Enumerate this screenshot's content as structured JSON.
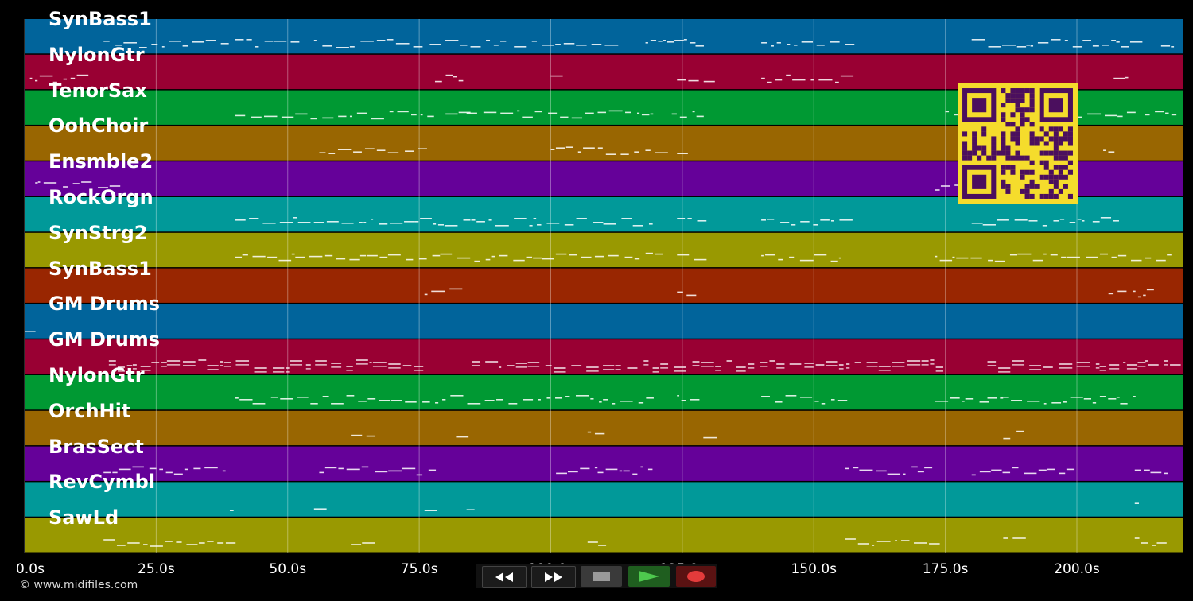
{
  "timeline": {
    "max_seconds": 220,
    "ticks": [
      {
        "seconds": 0,
        "label": "0.0s"
      },
      {
        "seconds": 25,
        "label": "25.0s"
      },
      {
        "seconds": 50,
        "label": "50.0s"
      },
      {
        "seconds": 75,
        "label": "75.0s"
      },
      {
        "seconds": 100,
        "label": "100.0s"
      },
      {
        "seconds": 125,
        "label": "125.0s"
      },
      {
        "seconds": 150,
        "label": "150.0s"
      },
      {
        "seconds": 175,
        "label": "175.0s"
      },
      {
        "seconds": 200,
        "label": "200.0s"
      }
    ]
  },
  "tracks": [
    {
      "label": "SynBass1",
      "color": "#01649b"
    },
    {
      "label": "NylonGtr",
      "color": "#990033"
    },
    {
      "label": "TenorSax",
      "color": "#009933"
    },
    {
      "label": "OohChoir",
      "color": "#996601"
    },
    {
      "label": "Ensmble2",
      "color": "#650199"
    },
    {
      "label": "RockOrgn",
      "color": "#019999"
    },
    {
      "label": "SynStrg2",
      "color": "#999901"
    },
    {
      "label": "SynBass1",
      "color": "#992601"
    },
    {
      "label": "GM Drums",
      "color": "#01649b"
    },
    {
      "label": "GM Drums",
      "color": "#990033"
    },
    {
      "label": "NylonGtr",
      "color": "#009933"
    },
    {
      "label": "OrchHit",
      "color": "#996601"
    },
    {
      "label": "BrasSect",
      "color": "#650199"
    },
    {
      "label": "RevCymbl",
      "color": "#019999"
    },
    {
      "label": "SawLd",
      "color": "#999901"
    }
  ],
  "qr": {
    "fg": "#4b0f5e",
    "bg": "#f5dc2c"
  },
  "transport": {
    "rewind": "rewind-icon",
    "fast_forward": "fast-forward-icon",
    "stop": "stop-icon",
    "play": "play-icon",
    "record": "record-icon"
  },
  "footer": {
    "copyright": "© www.midifiles.com"
  }
}
